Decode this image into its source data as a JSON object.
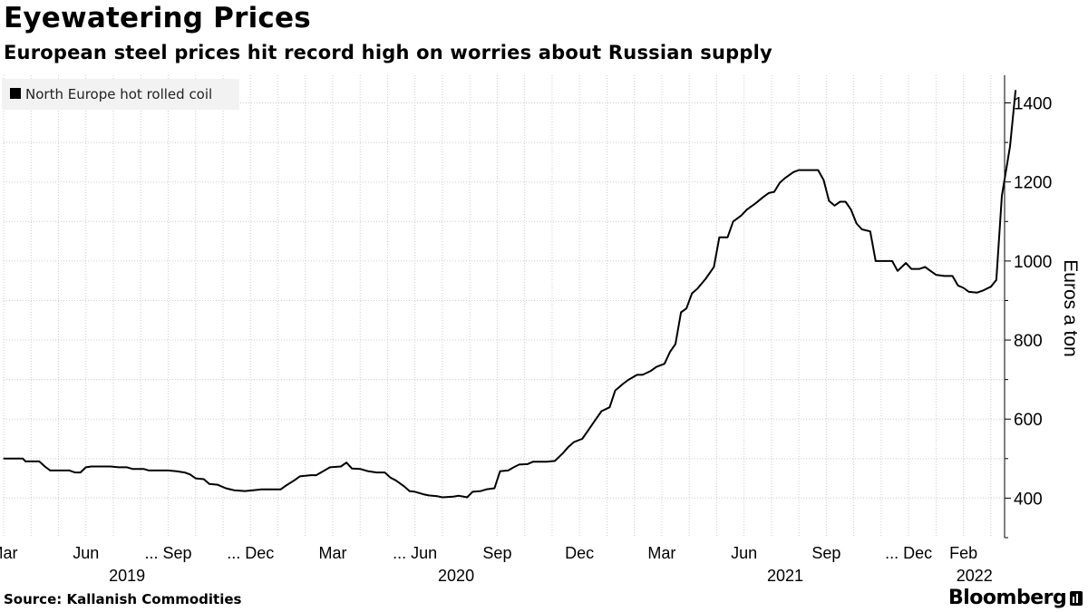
{
  "header": {
    "title": "Eyewatering Prices",
    "subtitle": "European steel prices hit record high on worries about Russian supply"
  },
  "footer": {
    "source": "Source: Kallanish Commodities",
    "brand": "Bloomberg"
  },
  "colors": {
    "line": "#000000",
    "grid": "#cccccc",
    "legend_bg": "#f2f2f2"
  },
  "chart_data": {
    "type": "line",
    "title": "Eyewatering Prices",
    "subtitle": "European steel prices hit record high on worries about Russian supply",
    "ylabel": "Euros a ton",
    "xlabel": "",
    "ylim": [
      300,
      1470
    ],
    "yticks": [
      400,
      600,
      800,
      1000,
      1200,
      1400
    ],
    "grid": true,
    "legend_position": "top-left",
    "x_range": [
      0,
      36.5
    ],
    "x_units": "months since Mar 1 2019",
    "xticks": [
      {
        "m": 0,
        "label": "Mar"
      },
      {
        "m": 3,
        "label": "Jun"
      },
      {
        "m": 6,
        "label": "... Sep"
      },
      {
        "m": 9,
        "label": "... Dec"
      },
      {
        "m": 12,
        "label": "Mar"
      },
      {
        "m": 15,
        "label": "... Jun"
      },
      {
        "m": 18,
        "label": "Sep"
      },
      {
        "m": 21,
        "label": "Dec"
      },
      {
        "m": 24,
        "label": "Mar"
      },
      {
        "m": 27,
        "label": "Jun"
      },
      {
        "m": 30,
        "label": "Sep"
      },
      {
        "m": 33,
        "label": "... Dec"
      },
      {
        "m": 35,
        "label": "Feb"
      }
    ],
    "year_labels": [
      {
        "m": 4.5,
        "label": "2019"
      },
      {
        "m": 16.5,
        "label": "2020"
      },
      {
        "m": 28.5,
        "label": "2021"
      },
      {
        "m": 35.4,
        "label": "2022"
      }
    ],
    "series": [
      {
        "name": "North Europe hot rolled coil",
        "points": [
          [
            0.0,
            500
          ],
          [
            0.3,
            500
          ],
          [
            0.7,
            500
          ],
          [
            0.8,
            493
          ],
          [
            1.3,
            493
          ],
          [
            1.5,
            480
          ],
          [
            1.7,
            470
          ],
          [
            2.1,
            470
          ],
          [
            2.4,
            470
          ],
          [
            2.6,
            465
          ],
          [
            2.8,
            465
          ],
          [
            3.0,
            478
          ],
          [
            3.2,
            480
          ],
          [
            3.6,
            480
          ],
          [
            3.9,
            480
          ],
          [
            4.2,
            478
          ],
          [
            4.5,
            478
          ],
          [
            4.7,
            474
          ],
          [
            5.1,
            474
          ],
          [
            5.3,
            470
          ],
          [
            5.7,
            470
          ],
          [
            6.0,
            470
          ],
          [
            6.3,
            468
          ],
          [
            6.6,
            465
          ],
          [
            6.8,
            460
          ],
          [
            7.0,
            450
          ],
          [
            7.3,
            448
          ],
          [
            7.5,
            436
          ],
          [
            7.8,
            434
          ],
          [
            8.1,
            425
          ],
          [
            8.4,
            420
          ],
          [
            8.8,
            418
          ],
          [
            9.1,
            420
          ],
          [
            9.4,
            422
          ],
          [
            9.8,
            422
          ],
          [
            10.1,
            422
          ],
          [
            10.3,
            432
          ],
          [
            10.6,
            445
          ],
          [
            10.8,
            455
          ],
          [
            11.2,
            458
          ],
          [
            11.4,
            458
          ],
          [
            11.7,
            470
          ],
          [
            11.9,
            478
          ],
          [
            12.3,
            480
          ],
          [
            12.5,
            490
          ],
          [
            12.7,
            475
          ],
          [
            13.0,
            474
          ],
          [
            13.3,
            468
          ],
          [
            13.6,
            465
          ],
          [
            13.9,
            465
          ],
          [
            14.1,
            452
          ],
          [
            14.3,
            445
          ],
          [
            14.6,
            430
          ],
          [
            14.8,
            418
          ],
          [
            15.0,
            416
          ],
          [
            15.3,
            410
          ],
          [
            15.5,
            407
          ],
          [
            15.8,
            405
          ],
          [
            16.0,
            402
          ],
          [
            16.4,
            404
          ],
          [
            16.6,
            406
          ],
          [
            16.9,
            402
          ],
          [
            17.1,
            416
          ],
          [
            17.4,
            418
          ],
          [
            17.6,
            422
          ],
          [
            17.9,
            425
          ],
          [
            18.1,
            468
          ],
          [
            18.4,
            470
          ],
          [
            18.6,
            478
          ],
          [
            18.8,
            485
          ],
          [
            19.1,
            486
          ],
          [
            19.3,
            492
          ],
          [
            19.8,
            492
          ],
          [
            20.1,
            494
          ],
          [
            20.4,
            514
          ],
          [
            20.6,
            530
          ],
          [
            20.8,
            542
          ],
          [
            21.1,
            550
          ],
          [
            21.3,
            570
          ],
          [
            21.5,
            590
          ],
          [
            21.8,
            620
          ],
          [
            22.1,
            630
          ],
          [
            22.3,
            672
          ],
          [
            22.6,
            690
          ],
          [
            22.8,
            700
          ],
          [
            23.1,
            712
          ],
          [
            23.3,
            712
          ],
          [
            23.6,
            722
          ],
          [
            23.8,
            732
          ],
          [
            24.1,
            740
          ],
          [
            24.3,
            770
          ],
          [
            24.5,
            790
          ],
          [
            24.7,
            870
          ],
          [
            24.9,
            880
          ],
          [
            25.1,
            918
          ],
          [
            25.3,
            930
          ],
          [
            25.6,
            955
          ],
          [
            25.9,
            985
          ],
          [
            26.1,
            1060
          ],
          [
            26.4,
            1060
          ],
          [
            26.6,
            1100
          ],
          [
            26.9,
            1115
          ],
          [
            27.1,
            1130
          ],
          [
            27.4,
            1145
          ],
          [
            27.7,
            1162
          ],
          [
            27.9,
            1172
          ],
          [
            28.1,
            1175
          ],
          [
            28.3,
            1198
          ],
          [
            28.5,
            1210
          ],
          [
            28.8,
            1225
          ],
          [
            29.0,
            1230
          ],
          [
            29.5,
            1230
          ],
          [
            29.7,
            1230
          ],
          [
            29.9,
            1205
          ],
          [
            30.1,
            1152
          ],
          [
            30.3,
            1140
          ],
          [
            30.5,
            1150
          ],
          [
            30.7,
            1150
          ],
          [
            30.9,
            1130
          ],
          [
            31.1,
            1095
          ],
          [
            31.3,
            1080
          ],
          [
            31.6,
            1075
          ],
          [
            31.8,
            1000
          ],
          [
            32.1,
            1000
          ],
          [
            32.4,
            1000
          ],
          [
            32.6,
            975
          ],
          [
            32.9,
            995
          ],
          [
            33.1,
            980
          ],
          [
            33.4,
            980
          ],
          [
            33.6,
            985
          ],
          [
            33.8,
            975
          ],
          [
            34.0,
            965
          ],
          [
            34.3,
            962
          ],
          [
            34.6,
            962
          ],
          [
            34.8,
            938
          ],
          [
            35.0,
            932
          ],
          [
            35.2,
            922
          ],
          [
            35.5,
            920
          ],
          [
            35.7,
            925
          ],
          [
            36.0,
            935
          ],
          [
            36.2,
            952
          ],
          [
            36.4,
            1165
          ],
          [
            36.7,
            1290
          ],
          [
            36.9,
            1432
          ]
        ]
      }
    ]
  }
}
